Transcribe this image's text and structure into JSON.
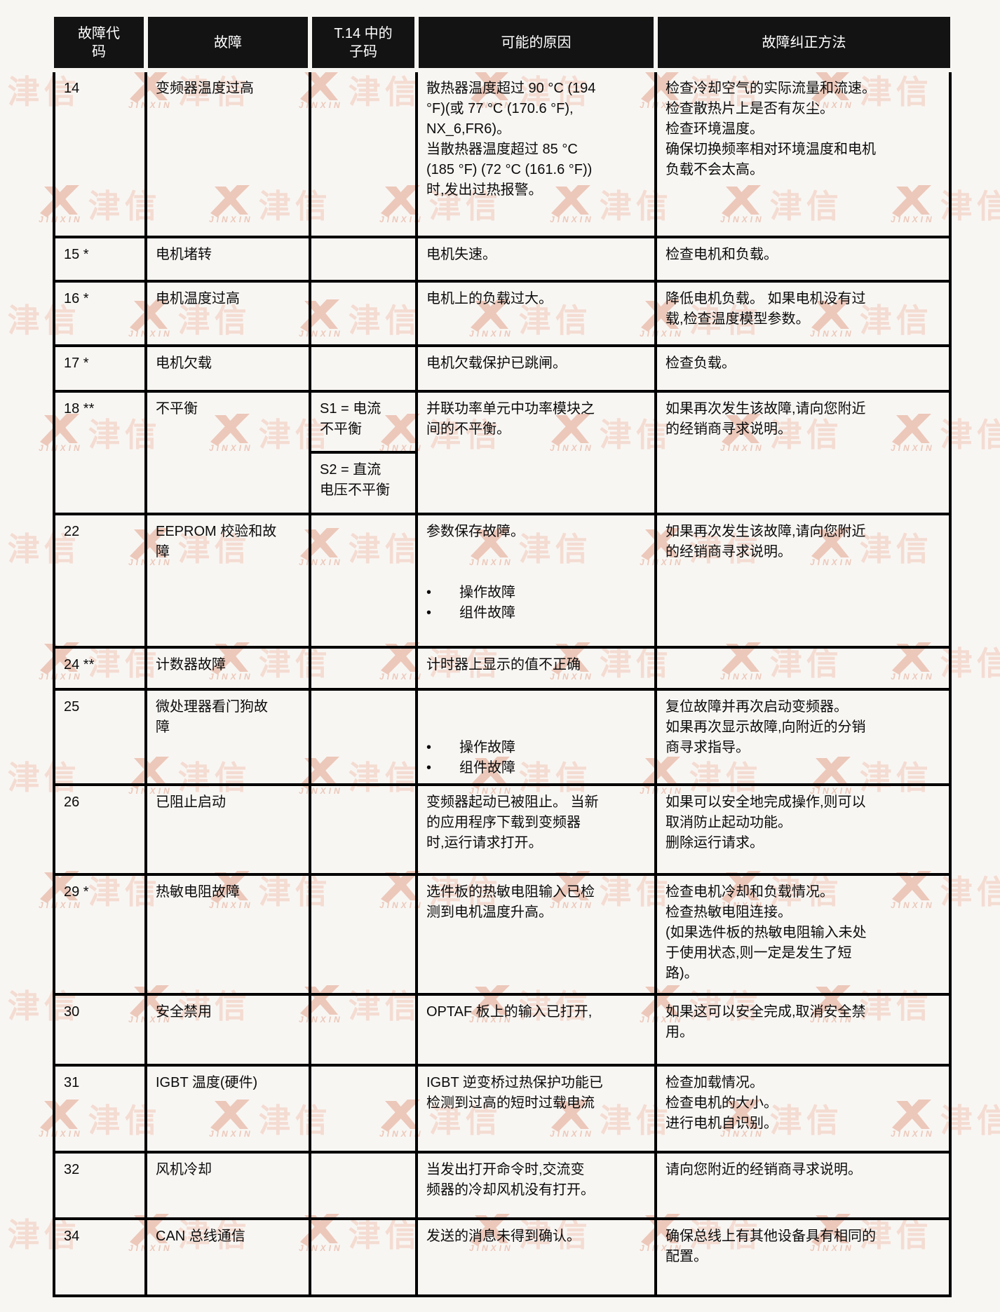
{
  "watermark": {
    "cn": "津信",
    "en": "JINXIN",
    "color_logo": "#ecc8ba",
    "color_text": "#f4dcd2"
  },
  "table": {
    "headers": [
      "故障代\n码",
      "故障",
      "T.14 中的\n子码",
      "可能的原因",
      "故障纠正方法"
    ],
    "rows": [
      {
        "code": "14",
        "fault": "变频器温度过高",
        "subcode": "",
        "cause": "散热器温度超过 90 °C (194\n°F)(或 77 °C (170.6 °F),\nNX_6,FR6)。\n当散热器温度超过 85 °C\n(185 °F) (72 °C (161.6 °F))\n时,发出过热报警。",
        "fix": "检查冷却空气的实际流量和流速。\n检查散热片上是否有灰尘。\n检查环境温度。\n确保切换频率相对环境温度和电机\n负载不会太高。"
      },
      {
        "code": "15 *",
        "fault": "电机堵转",
        "subcode": "",
        "cause": "电机失速。",
        "fix": "检查电机和负载。"
      },
      {
        "code": "16 *",
        "fault": "电机温度过高",
        "subcode": "",
        "cause": "电机上的负载过大。",
        "fix": "降低电机负载。 如果电机没有过\n载,检查温度模型参数。"
      },
      {
        "code": "17 *",
        "fault": "电机欠载",
        "subcode": "",
        "cause": "电机欠载保护已跳闸。",
        "fix": "检查负载。"
      },
      {
        "code": "18 **",
        "fault": "不平衡",
        "subcode_s1": "S1 = 电流\n不平衡",
        "subcode_s2": "S2 = 直流\n电压不平衡",
        "cause": "并联功率单元中功率模块之\n间的不平衡。",
        "fix": "如果再次发生该故障,请向您附近\n的经销商寻求说明。"
      },
      {
        "code": "22",
        "fault": "EEPROM 校验和故\n障",
        "subcode": "",
        "cause": "参数保存故障。\n\n\n•　　操作故障\n•　　组件故障",
        "fix": "如果再次发生该故障,请向您附近\n的经销商寻求说明。"
      },
      {
        "code": "24 **",
        "fault": "计数器故障",
        "subcode": "",
        "cause": "计时器上显示的值不正确",
        "fix": ""
      },
      {
        "code": "25",
        "fault": "微处理器看门狗故\n障",
        "subcode": "",
        "cause": "\n\n•　　操作故障\n•　　组件故障",
        "fix": "复位故障并再次启动变频器。\n如果再次显示故障,向附近的分销\n商寻求指导。"
      },
      {
        "code": "26",
        "fault": "已阻止启动",
        "subcode": "",
        "cause": "变频器起动已被阻止。 当新\n的应用程序下载到变频器\n时,运行请求打开。",
        "fix": "如果可以安全地完成操作,则可以\n取消防止起动功能。\n删除运行请求。"
      },
      {
        "code": "29 *",
        "fault": "热敏电阻故障",
        "subcode": "",
        "cause": "选件板的热敏电阻输入已检\n测到电机温度升高。",
        "fix": "检查电机冷却和负载情况。\n检查热敏电阻连接。\n(如果选件板的热敏电阻输入未处\n于使用状态,则一定是发生了短\n路)。"
      },
      {
        "code": "30",
        "fault": "安全禁用",
        "subcode": "",
        "cause": "OPTAF 板上的输入已打开,",
        "fix": "如果这可以安全完成,取消安全禁\n用。"
      },
      {
        "code": "31",
        "fault": "IGBT 温度(硬件)",
        "subcode": "",
        "cause": "IGBT 逆变桥过热保护功能已\n检测到过高的短时过载电流",
        "fix": "检查加载情况。\n检查电机的大小。\n进行电机自识别。"
      },
      {
        "code": "32",
        "fault": "风机冷却",
        "subcode": "",
        "cause": "当发出打开命令时,交流变\n频器的冷却风机没有打开。",
        "fix": "请向您附近的经销商寻求说明。"
      },
      {
        "code": "34",
        "fault": "CAN 总线通信",
        "subcode": "",
        "cause": "发送的消息未得到确认。",
        "fix": "确保总线上有其他设备具有相同的\n配置。"
      }
    ]
  }
}
